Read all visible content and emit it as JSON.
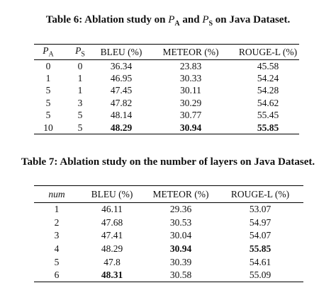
{
  "table6": {
    "caption": {
      "label": "Table 6:",
      "parts": [
        "Ablation study on",
        "P",
        "A",
        "and",
        "P",
        "S",
        "on Java Dataset."
      ]
    },
    "header": [
      {
        "text": "P",
        "sub": "A"
      },
      {
        "text": "P",
        "sub": "S"
      },
      "BLEU (%)",
      "METEOR (%)",
      "ROUGE-L (%)"
    ],
    "rows": [
      [
        0,
        0,
        36.34,
        23.83,
        45.58
      ],
      [
        1,
        1,
        46.95,
        30.33,
        54.24
      ],
      [
        5,
        1,
        47.45,
        30.11,
        54.28
      ],
      [
        5,
        3,
        47.82,
        30.29,
        54.62
      ],
      [
        5,
        5,
        48.14,
        30.77,
        55.45
      ],
      [
        10,
        5,
        48.29,
        30.94,
        55.85
      ]
    ]
  },
  "table7": {
    "caption": {
      "label": "Table 7:",
      "text": "Ablation study on the number of layers on Java Dataset."
    },
    "header": [
      "num",
      "BLEU (%)",
      "METEOR (%)",
      "ROUGE-L (%)"
    ],
    "rows": [
      [
        1,
        46.11,
        29.36,
        53.07
      ],
      [
        2,
        47.68,
        30.53,
        54.97
      ],
      [
        3,
        47.41,
        30.04,
        54.07
      ],
      [
        4,
        48.29,
        30.94,
        55.85
      ],
      [
        5,
        47.8,
        30.39,
        54.61
      ],
      [
        6,
        48.31,
        30.58,
        55.09
      ]
    ]
  }
}
